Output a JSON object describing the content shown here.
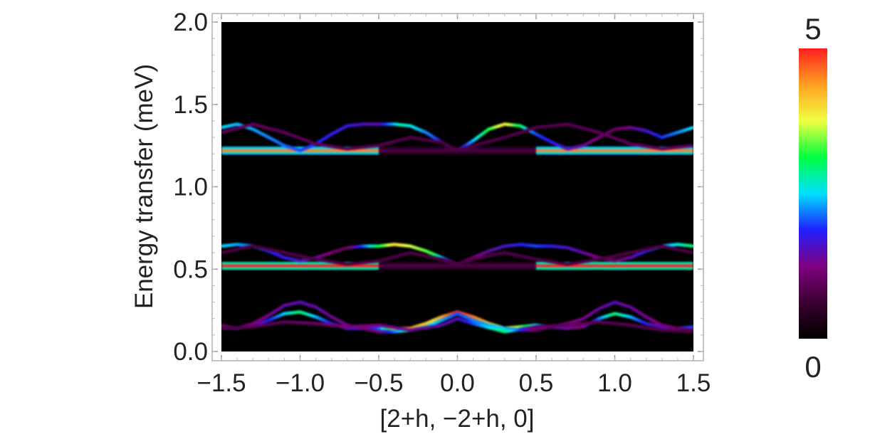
{
  "chart_data": {
    "type": "heatmap",
    "title": "",
    "xlabel": "[2+h, −2+h, 0]",
    "ylabel": "Energy transfer (meV)",
    "xlim": [
      -1.5,
      1.5
    ],
    "ylim": [
      0.0,
      2.0
    ],
    "x_ticks": [
      "−1.5",
      "−1.0",
      "−0.5",
      "0.0",
      "0.5",
      "1.0",
      "1.5"
    ],
    "x_tick_values": [
      -1.5,
      -1.0,
      -0.5,
      0.0,
      0.5,
      1.0,
      1.5
    ],
    "y_ticks": [
      "0.0",
      "0.5",
      "1.0",
      "1.5",
      "2.0"
    ],
    "y_tick_values": [
      0.0,
      0.5,
      1.0,
      1.5,
      2.0
    ],
    "background": "#000000",
    "colorbar": {
      "min": 0,
      "max": 5,
      "min_label": "0",
      "max_label": "5",
      "colormap": [
        "#000000",
        "#3a0030",
        "#800080",
        "#2020ff",
        "#00e0ff",
        "#00ff40",
        "#f0ff40",
        "#ffa020",
        "#ff2020"
      ]
    },
    "bands": [
      {
        "name": "flat-1.22",
        "kind": "flat",
        "energy": 1.22,
        "segments": [
          [
            -1.5,
            -0.5,
            4.5
          ],
          [
            -0.5,
            0.5,
            0.8
          ],
          [
            0.5,
            1.5,
            4.5
          ]
        ]
      },
      {
        "name": "flat-0.52",
        "kind": "flat",
        "energy": 0.52,
        "segments": [
          [
            -1.5,
            -0.5,
            5.0
          ],
          [
            -0.5,
            0.5,
            0.8
          ],
          [
            0.5,
            1.5,
            5.0
          ]
        ]
      },
      {
        "name": "upper-1.22",
        "kind": "dispersive",
        "points": [
          [
            -1.5,
            1.36
          ],
          [
            -1.4,
            1.38
          ],
          [
            -1.3,
            1.35
          ],
          [
            -1.2,
            1.3
          ],
          [
            -1.1,
            1.25
          ],
          [
            -1.0,
            1.22
          ],
          [
            -0.9,
            1.26
          ],
          [
            -0.8,
            1.32
          ],
          [
            -0.7,
            1.37
          ],
          [
            -0.6,
            1.38
          ],
          [
            -0.5,
            1.38
          ],
          [
            -0.4,
            1.38
          ],
          [
            -0.3,
            1.37
          ],
          [
            -0.2,
            1.33
          ],
          [
            -0.1,
            1.27
          ],
          [
            0.0,
            1.22
          ],
          [
            0.1,
            1.28
          ],
          [
            0.2,
            1.35
          ],
          [
            0.3,
            1.38
          ],
          [
            0.4,
            1.37
          ],
          [
            0.5,
            1.32
          ],
          [
            0.6,
            1.27
          ],
          [
            0.7,
            1.23
          ],
          [
            0.8,
            1.25
          ],
          [
            0.9,
            1.3
          ],
          [
            1.0,
            1.35
          ],
          [
            1.1,
            1.36
          ],
          [
            1.2,
            1.34
          ],
          [
            1.3,
            1.3
          ],
          [
            1.4,
            1.33
          ],
          [
            1.5,
            1.36
          ]
        ],
        "intensity": [
          [
            -1.5,
            2.5
          ],
          [
            -0.5,
            1.5
          ],
          [
            -0.35,
            2.8
          ],
          [
            0.0,
            1.5
          ],
          [
            0.3,
            4.0
          ],
          [
            0.5,
            2.0
          ],
          [
            1.0,
            1.0
          ],
          [
            1.5,
            2.5
          ]
        ]
      },
      {
        "name": "upper-1.22-b",
        "kind": "dispersive",
        "points": [
          [
            -1.5,
            1.33
          ],
          [
            -1.3,
            1.38
          ],
          [
            -1.1,
            1.33
          ],
          [
            -0.9,
            1.26
          ],
          [
            -0.7,
            1.23
          ],
          [
            -0.5,
            1.25
          ],
          [
            -0.3,
            1.3
          ],
          [
            -0.1,
            1.27
          ],
          [
            0.0,
            1.22
          ],
          [
            0.1,
            1.25
          ],
          [
            0.3,
            1.3
          ],
          [
            0.5,
            1.36
          ],
          [
            0.7,
            1.38
          ],
          [
            0.9,
            1.33
          ],
          [
            1.1,
            1.26
          ],
          [
            1.3,
            1.23
          ],
          [
            1.5,
            1.25
          ]
        ],
        "intensity": [
          [
            -1.5,
            1.0
          ],
          [
            0.0,
            0.8
          ],
          [
            1.5,
            1.0
          ]
        ]
      },
      {
        "name": "middle-0.52",
        "kind": "dispersive",
        "points": [
          [
            -1.5,
            0.64
          ],
          [
            -1.4,
            0.65
          ],
          [
            -1.3,
            0.64
          ],
          [
            -1.2,
            0.61
          ],
          [
            -1.1,
            0.57
          ],
          [
            -1.0,
            0.55
          ],
          [
            -0.9,
            0.57
          ],
          [
            -0.8,
            0.6
          ],
          [
            -0.7,
            0.63
          ],
          [
            -0.6,
            0.64
          ],
          [
            -0.5,
            0.64
          ],
          [
            -0.4,
            0.65
          ],
          [
            -0.3,
            0.64
          ],
          [
            -0.2,
            0.61
          ],
          [
            -0.1,
            0.57
          ],
          [
            0.0,
            0.53
          ],
          [
            0.1,
            0.57
          ],
          [
            0.2,
            0.61
          ],
          [
            0.3,
            0.64
          ],
          [
            0.4,
            0.65
          ],
          [
            0.5,
            0.64
          ],
          [
            0.6,
            0.64
          ],
          [
            0.7,
            0.63
          ],
          [
            0.8,
            0.6
          ],
          [
            0.9,
            0.57
          ],
          [
            1.0,
            0.55
          ],
          [
            1.1,
            0.57
          ],
          [
            1.2,
            0.61
          ],
          [
            1.3,
            0.64
          ],
          [
            1.4,
            0.65
          ],
          [
            1.5,
            0.64
          ]
        ],
        "intensity": [
          [
            -1.5,
            2.5
          ],
          [
            -0.7,
            1.0
          ],
          [
            -0.4,
            4.0
          ],
          [
            -0.15,
            3.2
          ],
          [
            0.0,
            1.0
          ],
          [
            0.5,
            2.0
          ],
          [
            1.0,
            1.0
          ],
          [
            1.5,
            3.0
          ]
        ]
      },
      {
        "name": "middle-0.52-b",
        "kind": "dispersive",
        "points": [
          [
            -1.5,
            0.6
          ],
          [
            -1.3,
            0.64
          ],
          [
            -1.1,
            0.6
          ],
          [
            -0.9,
            0.56
          ],
          [
            -0.7,
            0.53
          ],
          [
            -0.5,
            0.55
          ],
          [
            -0.3,
            0.6
          ],
          [
            -0.1,
            0.56
          ],
          [
            0.0,
            0.53
          ],
          [
            0.1,
            0.56
          ],
          [
            0.3,
            0.6
          ],
          [
            0.5,
            0.56
          ],
          [
            0.7,
            0.53
          ],
          [
            0.9,
            0.56
          ],
          [
            1.1,
            0.6
          ],
          [
            1.3,
            0.64
          ],
          [
            1.5,
            0.6
          ]
        ],
        "intensity": [
          [
            -1.5,
            0.8
          ],
          [
            1.5,
            0.8
          ]
        ]
      },
      {
        "name": "lower-1",
        "kind": "dispersive",
        "points": [
          [
            -1.5,
            0.15
          ],
          [
            -1.4,
            0.14
          ],
          [
            -1.3,
            0.16
          ],
          [
            -1.2,
            0.19
          ],
          [
            -1.1,
            0.23
          ],
          [
            -1.0,
            0.24
          ],
          [
            -0.9,
            0.21
          ],
          [
            -0.8,
            0.17
          ],
          [
            -0.7,
            0.14
          ],
          [
            -0.6,
            0.14
          ],
          [
            -0.5,
            0.14
          ],
          [
            -0.4,
            0.14
          ],
          [
            -0.3,
            0.14
          ],
          [
            -0.2,
            0.17
          ],
          [
            -0.1,
            0.21
          ],
          [
            0.0,
            0.24
          ],
          [
            0.1,
            0.21
          ],
          [
            0.2,
            0.17
          ],
          [
            0.3,
            0.14
          ],
          [
            0.4,
            0.15
          ],
          [
            0.5,
            0.16
          ],
          [
            0.6,
            0.15
          ],
          [
            0.7,
            0.14
          ],
          [
            0.8,
            0.15
          ],
          [
            0.9,
            0.2
          ],
          [
            1.0,
            0.23
          ],
          [
            1.1,
            0.21
          ],
          [
            1.2,
            0.17
          ],
          [
            1.3,
            0.15
          ],
          [
            1.4,
            0.14
          ],
          [
            1.5,
            0.15
          ]
        ],
        "intensity": [
          [
            -1.5,
            2.5
          ],
          [
            -1.25,
            1.5
          ],
          [
            -1.0,
            3.0
          ],
          [
            -0.75,
            1.5
          ],
          [
            -0.5,
            2.0
          ],
          [
            -0.35,
            4.5
          ],
          [
            -0.15,
            4.0
          ],
          [
            0.0,
            5.0
          ],
          [
            0.2,
            4.2
          ],
          [
            0.4,
            3.5
          ],
          [
            0.6,
            1.5
          ],
          [
            0.8,
            1.2
          ],
          [
            1.0,
            3.0
          ],
          [
            1.25,
            1.5
          ],
          [
            1.5,
            2.0
          ]
        ]
      },
      {
        "name": "lower-2",
        "kind": "dispersive",
        "points": [
          [
            -1.5,
            0.16
          ],
          [
            -1.4,
            0.14
          ],
          [
            -1.3,
            0.17
          ],
          [
            -1.2,
            0.22
          ],
          [
            -1.1,
            0.28
          ],
          [
            -1.0,
            0.3
          ],
          [
            -0.9,
            0.27
          ],
          [
            -0.8,
            0.21
          ],
          [
            -0.7,
            0.16
          ],
          [
            -0.6,
            0.14
          ],
          [
            -0.5,
            0.12
          ],
          [
            -0.4,
            0.12
          ],
          [
            -0.3,
            0.13
          ],
          [
            -0.2,
            0.15
          ],
          [
            -0.1,
            0.19
          ],
          [
            0.0,
            0.23
          ],
          [
            0.1,
            0.19
          ],
          [
            0.2,
            0.16
          ],
          [
            0.3,
            0.14
          ],
          [
            0.4,
            0.13
          ],
          [
            0.5,
            0.13
          ],
          [
            0.6,
            0.15
          ],
          [
            0.7,
            0.17
          ],
          [
            0.8,
            0.2
          ],
          [
            0.9,
            0.26
          ],
          [
            1.0,
            0.3
          ],
          [
            1.1,
            0.27
          ],
          [
            1.2,
            0.21
          ],
          [
            1.3,
            0.16
          ],
          [
            1.4,
            0.14
          ],
          [
            1.5,
            0.13
          ]
        ],
        "intensity": [
          [
            -1.5,
            1.0
          ],
          [
            -1.0,
            1.5
          ],
          [
            -0.5,
            1.2
          ],
          [
            -0.3,
            3.0
          ],
          [
            0.0,
            2.0
          ],
          [
            0.3,
            2.5
          ],
          [
            0.5,
            1.0
          ],
          [
            1.0,
            1.5
          ],
          [
            1.5,
            1.0
          ]
        ]
      },
      {
        "name": "lower-3",
        "kind": "dispersive",
        "points": [
          [
            -1.5,
            0.14
          ],
          [
            -1.3,
            0.15
          ],
          [
            -1.1,
            0.18
          ],
          [
            -0.9,
            0.17
          ],
          [
            -0.7,
            0.15
          ],
          [
            -0.5,
            0.16
          ],
          [
            -0.3,
            0.13
          ],
          [
            -0.1,
            0.16
          ],
          [
            0.0,
            0.2
          ],
          [
            0.1,
            0.17
          ],
          [
            0.3,
            0.12
          ],
          [
            0.5,
            0.15
          ],
          [
            0.7,
            0.16
          ],
          [
            0.9,
            0.18
          ],
          [
            1.1,
            0.16
          ],
          [
            1.3,
            0.13
          ],
          [
            1.5,
            0.12
          ]
        ],
        "intensity": [
          [
            -1.5,
            0.8
          ],
          [
            0.0,
            1.5
          ],
          [
            0.3,
            3.0
          ],
          [
            0.5,
            1.0
          ],
          [
            1.5,
            0.8
          ]
        ]
      }
    ]
  }
}
